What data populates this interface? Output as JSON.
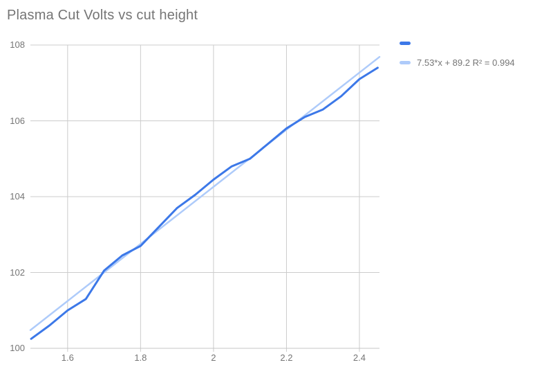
{
  "title": "Plasma Cut Volts vs cut height",
  "background": "#ffffff",
  "text_color": "#757575",
  "grid_color": "#cccccc",
  "axis_color": "#c4c4c4",
  "legend": {
    "position": "right-top",
    "items": [
      {
        "label": "",
        "color": "#3c78e8"
      },
      {
        "label": "7.53*x + 89.2 R² = 0.994",
        "color": "#aecbfa"
      }
    ]
  },
  "chart_data": {
    "type": "line",
    "title": "Plasma Cut Volts vs cut height",
    "xlabel": "",
    "ylabel": "",
    "grid": true,
    "x_range": [
      1.498,
      2.455
    ],
    "y_range": [
      100,
      108
    ],
    "x_tick_values": [
      1.6,
      1.8,
      2,
      2.2,
      2.4
    ],
    "x_tick_labels": [
      "1.6",
      "1.8",
      "2",
      "2.2",
      "2.4"
    ],
    "y_tick_values": [
      100,
      102,
      104,
      106,
      108
    ],
    "y_tick_labels": [
      "100",
      "102",
      "104",
      "106",
      "108"
    ],
    "x": [
      1.5,
      1.55,
      1.6,
      1.65,
      1.7,
      1.75,
      1.8,
      1.85,
      1.9,
      1.95,
      2.0,
      2.05,
      2.1,
      2.15,
      2.2,
      2.25,
      2.3,
      2.35,
      2.4,
      2.45
    ],
    "series": [
      {
        "name": "",
        "color": "#3c78e8",
        "values": [
          100.25,
          100.6,
          101.0,
          101.3,
          102.05,
          102.45,
          102.7,
          103.2,
          103.7,
          104.05,
          104.45,
          104.8,
          105.0,
          105.4,
          105.8,
          106.1,
          106.3,
          106.65,
          107.1,
          107.4
        ]
      }
    ],
    "trendline": {
      "label": "7.53*x + 89.2 R² = 0.994",
      "slope": 7.53,
      "intercept": 89.2,
      "r2": 0.994,
      "color": "#aecbfa"
    }
  }
}
